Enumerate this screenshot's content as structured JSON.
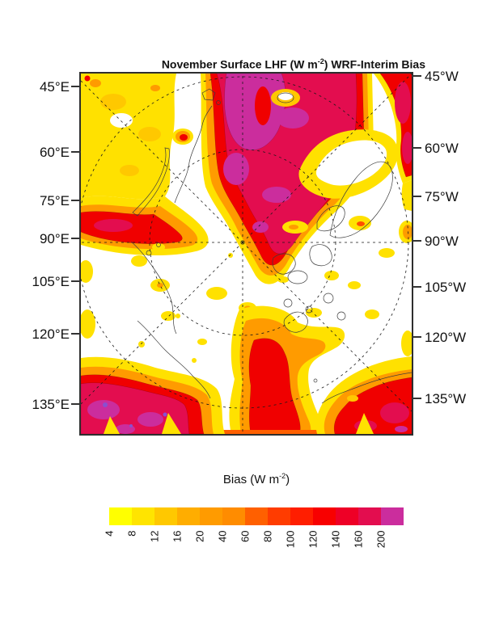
{
  "figure": {
    "title": {
      "prefix": "November Surface LHF (W m",
      "sup": "-2",
      "suffix": ") WRF-Interim Bias"
    }
  },
  "map": {
    "left_labels": [
      "45°E",
      "60°E",
      "75°E",
      "90°E",
      "105°E",
      "120°E",
      "135°E"
    ],
    "right_labels": [
      "45°W",
      "60°W",
      "75°W",
      "90°W",
      "105°W",
      "120°W",
      "135°W"
    ]
  },
  "colorbar": {
    "title": {
      "prefix": "Bias (W m",
      "sup": "-2",
      "suffix": ")"
    },
    "tick_labels": [
      "4",
      "8",
      "12",
      "16",
      "20",
      "40",
      "60",
      "80",
      "100",
      "120",
      "140",
      "160",
      "200"
    ],
    "colors": [
      "#FFFF00",
      "#FFE400",
      "#FFC800",
      "#FFAD00",
      "#FF9B00",
      "#FF8C00",
      "#FF6000",
      "#FF3C00",
      "#FF1E00",
      "#F80000",
      "#EE0026",
      "#E30D4F",
      "#CB2D9D"
    ]
  },
  "style_colors": {
    "frame": "#2e2e2e",
    "graticule": "#1a1a1a",
    "coastline": "#3c3c3c",
    "no_data_background": "#ffffff",
    "overrange_violet_spots": "#8A4FD0"
  },
  "chart_data": {
    "type": "heatmap",
    "subtype": "filled contour field on Arctic polar-stereographic map",
    "title": "November Surface LHF (W m-2) WRF-Interim Bias",
    "colorbar_title": "Bias (W m-2)",
    "units": "W m-2",
    "contour_levels": [
      4,
      8,
      12,
      16,
      20,
      40,
      60,
      80,
      100,
      120,
      140,
      160,
      200
    ],
    "palette": [
      "#FFFF00",
      "#FFE400",
      "#FFC800",
      "#FFAD00",
      "#FF9B00",
      "#FF8C00",
      "#FF6000",
      "#FF3C00",
      "#FF1E00",
      "#F80000",
      "#EE0026",
      "#E30D4F",
      "#CB2D9D"
    ],
    "below_min": "white (bias < 4 not shaded)",
    "above_max": "magenta (bias > 200)",
    "left_axis_tick_labels": [
      "45°E",
      "60°E",
      "75°E",
      "90°E",
      "105°E",
      "120°E",
      "135°E"
    ],
    "right_axis_tick_labels": [
      "45°W",
      "60°W",
      "75°W",
      "90°W",
      "105°W",
      "120°W",
      "135°W"
    ],
    "graticule": "dashed meridians every 45° converging at the pole plus two dashed latitude circles",
    "coastlines": "thin dark outlines: Scandinavia, Svalbard, Novaya Zemlya, Siberian coast, Alaska/Chukotka, Canadian Archipelago, Greenland",
    "regions": [
      {
        "area": "top center (Norwegian / Barents Sea)",
        "bias": "160 to >200, crimson with magenta maximum"
      },
      {
        "area": "top right (Greenland Sea / N Atlantic)",
        "bias": "100-200, red"
      },
      {
        "area": "top left (Kara Sea sector)",
        "bias": "8-20, yellow field with orange spots"
      },
      {
        "area": "left center (Laptev sector)",
        "bias": "40-140, orange-red tongue"
      },
      {
        "area": "central Arctic ice pack",
        "bias": "< 4, unshaded white with scattered 4-20 yellow patches"
      },
      {
        "area": "right center (Greenland interior)",
        "bias": "< 4 to 8, white with yellow fringe"
      },
      {
        "area": "bottom center (Bering Strait / Bering Sea)",
        "bias": "40-140, orange to red core"
      },
      {
        "area": "bottom left (Sea of Okhotsk sector)",
        "bias": "140 to >200, crimson-magenta with violet specks"
      },
      {
        "area": "bottom right (North Pacific / Gulf of Alaska)",
        "bias": "100-200, red with crimson patches"
      }
    ]
  }
}
